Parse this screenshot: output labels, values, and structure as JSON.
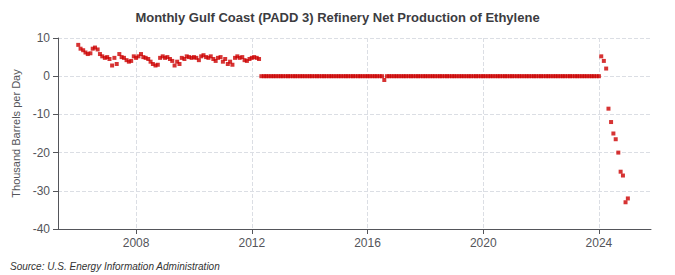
{
  "chart_data": {
    "type": "scatter",
    "title": "Monthly Gulf Coast (PADD 3) Refinery Net Production of Ethylene",
    "ylabel": "Thousand Barrels per Day",
    "source": "Source: U.S. Energy Information Administration",
    "color": "#cc0000",
    "marker": "square",
    "grid": true,
    "xlim": [
      2005.3,
      2025.8
    ],
    "xticks": [
      2008,
      2012,
      2016,
      2020,
      2024
    ],
    "ylim": [
      -40,
      10
    ],
    "yticks": [
      -40,
      -30,
      -20,
      -10,
      0,
      10
    ],
    "series": [
      {
        "x": [
          2006.0,
          2006.08,
          2006.17,
          2006.25,
          2006.33,
          2006.42,
          2006.5,
          2006.58,
          2006.67,
          2006.75,
          2006.83,
          2006.92,
          2007.0,
          2007.08,
          2007.17,
          2007.25,
          2007.33,
          2007.42,
          2007.5,
          2007.58,
          2007.67,
          2007.75,
          2007.83,
          2007.92,
          2008.0,
          2008.08,
          2008.17,
          2008.25,
          2008.33,
          2008.42,
          2008.5,
          2008.58,
          2008.67,
          2008.75,
          2008.83,
          2008.92,
          2009.0,
          2009.08,
          2009.17,
          2009.25,
          2009.33,
          2009.42,
          2009.5,
          2009.58,
          2009.67,
          2009.75,
          2009.83,
          2009.92,
          2010.0,
          2010.08,
          2010.17,
          2010.25,
          2010.33,
          2010.42,
          2010.5,
          2010.58,
          2010.67,
          2010.75,
          2010.83,
          2010.92,
          2011.0,
          2011.08,
          2011.17,
          2011.25,
          2011.33,
          2011.42,
          2011.5,
          2011.58,
          2011.67,
          2011.75,
          2011.83,
          2011.92,
          2012.0,
          2012.08,
          2012.17,
          2012.25
        ],
        "values": [
          8.2,
          7.2,
          6.8,
          6.2,
          5.8,
          6.0,
          7.2,
          7.5,
          7.0,
          5.8,
          5.2,
          4.8,
          5.0,
          4.5,
          2.8,
          4.8,
          3.2,
          5.8,
          5.0,
          4.8,
          4.2,
          3.8,
          4.0,
          5.2,
          4.8,
          5.2,
          5.8,
          5.0,
          4.8,
          4.5,
          3.8,
          3.2,
          2.8,
          3.0,
          4.8,
          5.2,
          4.8,
          5.0,
          4.5,
          4.0,
          2.8,
          3.8,
          3.2,
          4.8,
          4.5,
          5.2,
          5.0,
          4.8,
          5.0,
          4.8,
          4.2,
          5.2,
          5.5,
          5.0,
          4.8,
          5.2,
          4.5,
          4.0,
          4.8,
          5.0,
          3.8,
          4.5,
          3.2,
          3.8,
          3.0,
          4.8,
          5.2,
          4.8,
          5.0,
          4.2,
          4.0,
          4.5,
          4.8,
          5.0,
          4.8,
          4.5
        ]
      },
      {
        "x": [
          2012.33,
          2012.42,
          2012.5,
          2012.58,
          2012.67,
          2012.75,
          2012.83,
          2012.92,
          2013.0,
          2013.08,
          2013.17,
          2013.25,
          2013.33,
          2013.42,
          2013.5,
          2013.58,
          2013.67,
          2013.75,
          2013.83,
          2013.92,
          2014.0,
          2014.08,
          2014.17,
          2014.25,
          2014.33,
          2014.42,
          2014.5,
          2014.58,
          2014.67,
          2014.75,
          2014.83,
          2014.92,
          2015.0,
          2015.08,
          2015.17,
          2015.25,
          2015.33,
          2015.42,
          2015.5,
          2015.58,
          2015.67,
          2015.75,
          2015.83,
          2015.92,
          2016.0,
          2016.08,
          2016.17,
          2016.25,
          2016.33,
          2016.42,
          2016.5,
          2016.58,
          2016.67,
          2016.75,
          2016.83,
          2016.92,
          2017.0,
          2017.08,
          2017.17,
          2017.25,
          2017.33,
          2017.42,
          2017.5,
          2017.58,
          2017.67,
          2017.75,
          2017.83,
          2017.92,
          2018.0,
          2018.08,
          2018.17,
          2018.25,
          2018.33,
          2018.42,
          2018.5,
          2018.58,
          2018.67,
          2018.75,
          2018.83,
          2018.92,
          2019.0,
          2019.08,
          2019.17,
          2019.25,
          2019.33,
          2019.42,
          2019.5,
          2019.58,
          2019.67,
          2019.75,
          2019.83,
          2019.92,
          2020.0,
          2020.08,
          2020.17,
          2020.25,
          2020.33,
          2020.42,
          2020.5,
          2020.58,
          2020.67,
          2020.75,
          2020.83,
          2020.92,
          2021.0,
          2021.08,
          2021.17,
          2021.25,
          2021.33,
          2021.42,
          2021.5,
          2021.58,
          2021.67,
          2021.75,
          2021.83,
          2021.92,
          2022.0,
          2022.08,
          2022.17,
          2022.25,
          2022.33,
          2022.42,
          2022.5,
          2022.58,
          2022.67,
          2022.75,
          2022.83,
          2022.92,
          2023.0,
          2023.08,
          2023.17,
          2023.25,
          2023.33,
          2023.42,
          2023.5,
          2023.58,
          2023.67,
          2023.75,
          2023.83,
          2023.92
        ],
        "values": [
          0,
          0,
          0,
          0,
          0,
          0,
          0,
          0,
          0,
          0,
          0,
          0,
          0,
          0,
          0,
          0,
          0,
          0,
          0,
          0,
          0,
          0,
          0,
          0,
          0,
          0,
          0,
          0,
          0,
          0,
          0,
          0,
          0,
          0,
          0,
          0,
          0,
          0,
          0,
          0,
          0,
          0,
          0,
          0,
          0,
          0,
          0,
          0,
          0,
          0,
          0,
          -1,
          0,
          0,
          0,
          0,
          0,
          0,
          0,
          0,
          0,
          0,
          0,
          0,
          0,
          0,
          0,
          0,
          0,
          0,
          0,
          0,
          0,
          0,
          0,
          0,
          0,
          0,
          0,
          0,
          0,
          0,
          0,
          0,
          0,
          0,
          0,
          0,
          0,
          0,
          0,
          0,
          0,
          0,
          0,
          0,
          0,
          0,
          0,
          0,
          0,
          0,
          0,
          0,
          0,
          0,
          0,
          0,
          0,
          0,
          0,
          0,
          0,
          0,
          0,
          0,
          0,
          0,
          0,
          0,
          0,
          0,
          0,
          0,
          0,
          0,
          0,
          0,
          0,
          0,
          0,
          0,
          0,
          0,
          0,
          0,
          0,
          0,
          0,
          0
        ]
      },
      {
        "x": [
          2024.0,
          2024.08,
          2024.17,
          2024.25,
          2024.33,
          2024.42,
          2024.5,
          2024.58,
          2024.67,
          2024.75,
          2024.83,
          2024.92,
          2025.0
        ],
        "values": [
          0,
          5.2,
          4.0,
          2.0,
          -8.5,
          -12.0,
          -15.0,
          -16.5,
          -20.0,
          -25.0,
          -26.0,
          -33.0,
          -32.0
        ]
      }
    ]
  }
}
